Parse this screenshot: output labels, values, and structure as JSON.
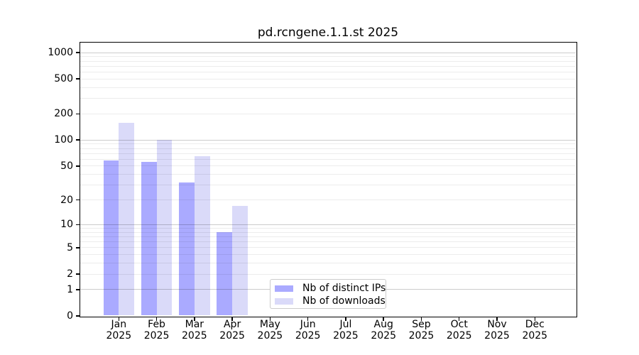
{
  "title": "pd.rcngene.1.1.st 2025",
  "chart_data": {
    "type": "bar",
    "title": "pd.rcngene.1.1.st 2025",
    "y_scale": "log10(1+y)",
    "categories": [
      "Jan",
      "Feb",
      "Mar",
      "Apr",
      "May",
      "Jun",
      "Jul",
      "Aug",
      "Sep",
      "Oct",
      "Nov",
      "Dec"
    ],
    "category_year": "2025",
    "series": [
      {
        "name": "Nb of distinct IPs",
        "color": "#aaaaff",
        "values": [
          58,
          56,
          32,
          8,
          0,
          0,
          0,
          0,
          0,
          0,
          0,
          0
        ]
      },
      {
        "name": "Nb of downloads",
        "color": "#dadaf9",
        "values": [
          157,
          100,
          65,
          17,
          0,
          0,
          0,
          0,
          0,
          0,
          0,
          0
        ]
      }
    ],
    "y_ticks": [
      0,
      1,
      2,
      5,
      10,
      20,
      50,
      100,
      200,
      500,
      1000
    ],
    "ylim": [
      0,
      1300
    ],
    "grid": {
      "major": [
        1,
        10,
        100,
        1000
      ],
      "minor": [
        2,
        3,
        4,
        5,
        6,
        7,
        8,
        9,
        20,
        30,
        40,
        50,
        60,
        70,
        80,
        90,
        200,
        300,
        400,
        500,
        600,
        700,
        800,
        900
      ]
    },
    "legend": {
      "position": "lower center",
      "entries": [
        "Nb of distinct IPs",
        "Nb of downloads"
      ]
    }
  }
}
